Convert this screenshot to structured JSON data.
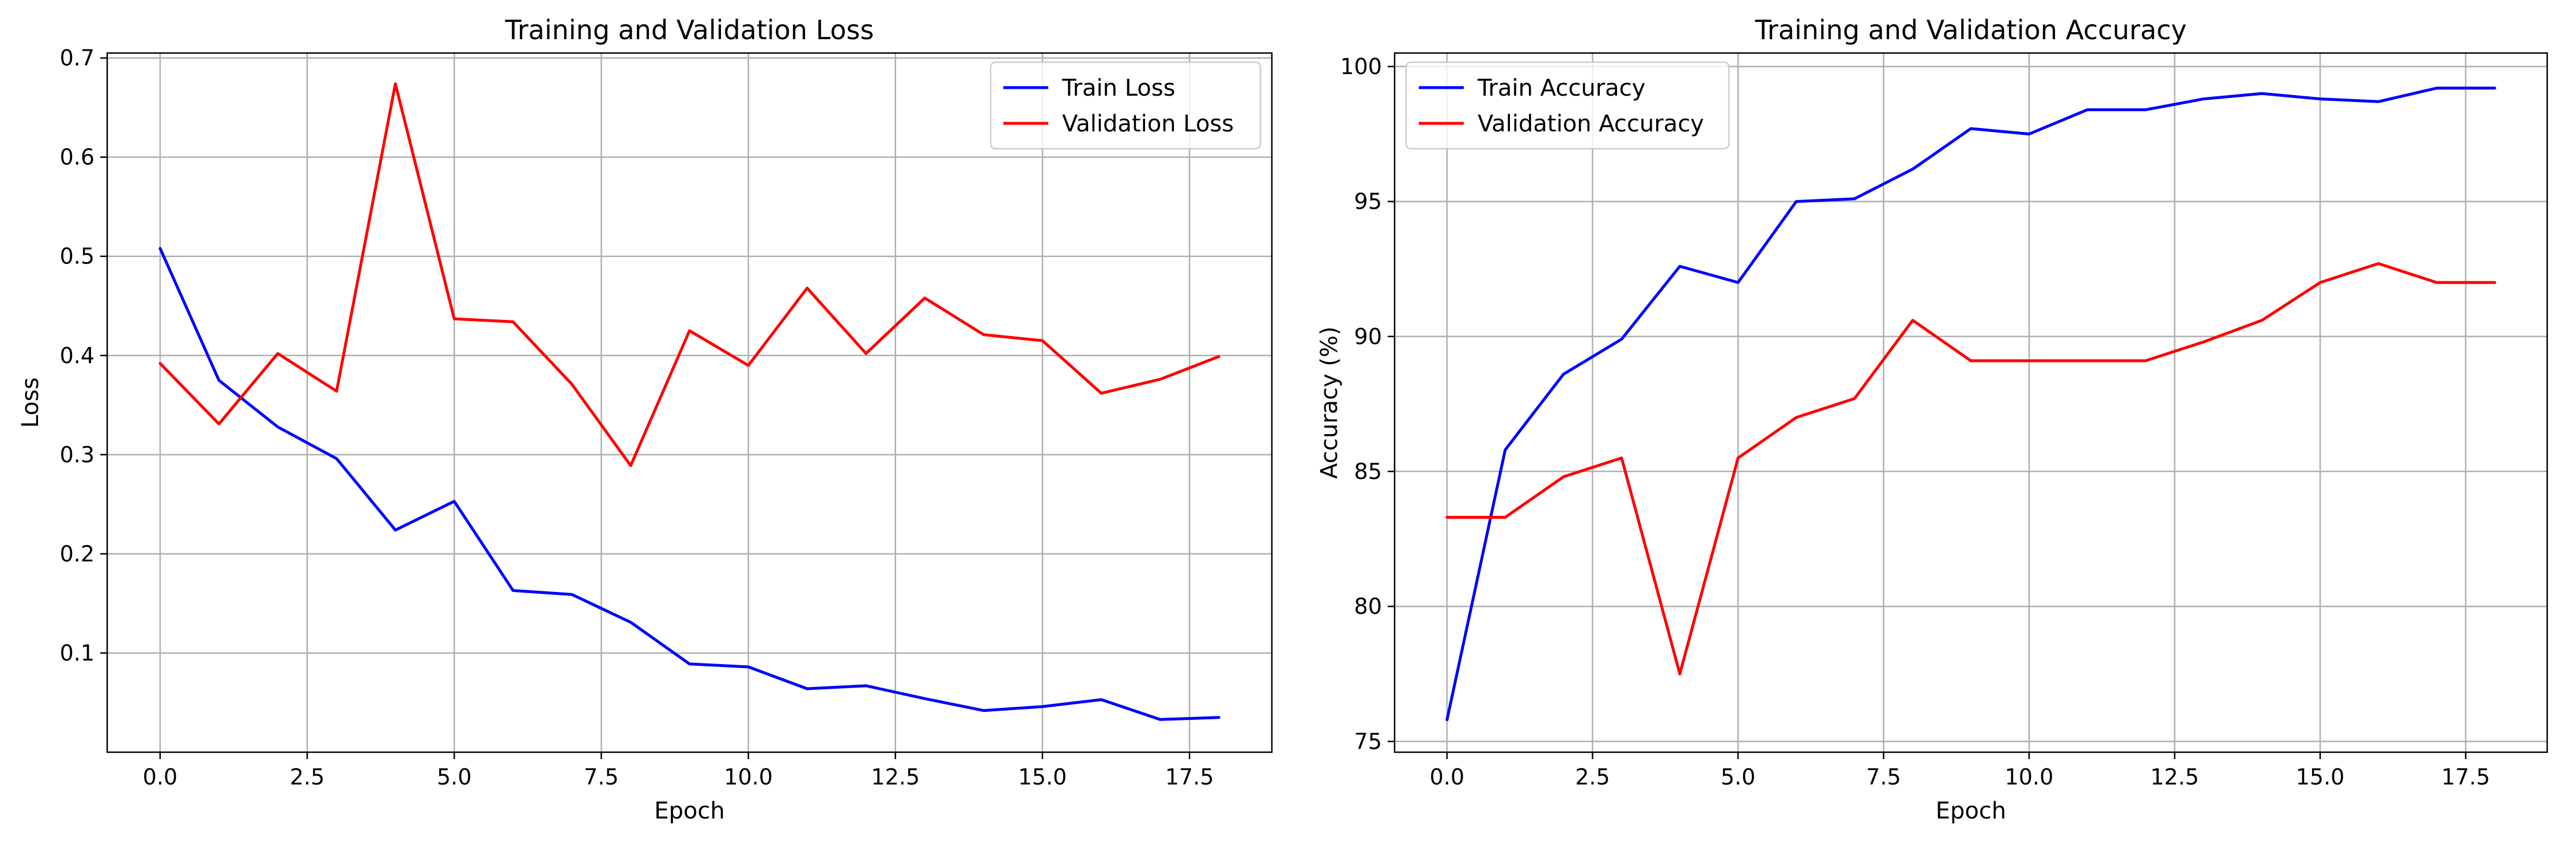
{
  "chart_data": [
    {
      "type": "line",
      "title": "Training and Validation Loss",
      "xlabel": "Epoch",
      "ylabel": "Loss",
      "x": [
        0,
        1,
        2,
        3,
        4,
        5,
        6,
        7,
        8,
        9,
        10,
        11,
        12,
        13,
        14,
        15,
        16,
        17,
        18
      ],
      "xlim": [
        -0.9,
        18.9
      ],
      "ylim": [
        0.0,
        0.705
      ],
      "xticks": [
        0.0,
        2.5,
        5.0,
        7.5,
        10.0,
        12.5,
        15.0,
        17.5
      ],
      "xtick_labels": [
        "0.0",
        "2.5",
        "5.0",
        "7.5",
        "10.0",
        "12.5",
        "15.0",
        "17.5"
      ],
      "yticks": [
        0.1,
        0.2,
        0.3,
        0.4,
        0.5,
        0.6,
        0.7
      ],
      "ytick_labels": [
        "0.1",
        "0.2",
        "0.3",
        "0.4",
        "0.5",
        "0.6",
        "0.7"
      ],
      "grid": true,
      "legend_position": "top-right",
      "series": [
        {
          "name": "Train Loss",
          "color": "#0000ff",
          "values": [
            0.508,
            0.375,
            0.328,
            0.296,
            0.224,
            0.253,
            0.163,
            0.159,
            0.131,
            0.089,
            0.086,
            0.064,
            0.067,
            0.054,
            0.042,
            0.046,
            0.053,
            0.033,
            0.035
          ]
        },
        {
          "name": "Validation Loss",
          "color": "#ff0000",
          "values": [
            0.392,
            0.331,
            0.402,
            0.364,
            0.674,
            0.437,
            0.434,
            0.371,
            0.289,
            0.425,
            0.39,
            0.468,
            0.402,
            0.458,
            0.421,
            0.415,
            0.362,
            0.376,
            0.399
          ]
        }
      ]
    },
    {
      "type": "line",
      "title": "Training and Validation Accuracy",
      "xlabel": "Epoch",
      "ylabel": "Accuracy (%)",
      "x": [
        0,
        1,
        2,
        3,
        4,
        5,
        6,
        7,
        8,
        9,
        10,
        11,
        12,
        13,
        14,
        15,
        16,
        17,
        18
      ],
      "xlim": [
        -0.9,
        18.9
      ],
      "ylim": [
        74.6,
        100.5
      ],
      "xticks": [
        0.0,
        2.5,
        5.0,
        7.5,
        10.0,
        12.5,
        15.0,
        17.5
      ],
      "xtick_labels": [
        "0.0",
        "2.5",
        "5.0",
        "7.5",
        "10.0",
        "12.5",
        "15.0",
        "17.5"
      ],
      "yticks": [
        75,
        80,
        85,
        90,
        95,
        100
      ],
      "ytick_labels": [
        "75",
        "80",
        "85",
        "90",
        "95",
        "100"
      ],
      "grid": true,
      "legend_position": "top-left",
      "series": [
        {
          "name": "Train Accuracy",
          "color": "#0000ff",
          "values": [
            75.8,
            85.8,
            88.6,
            89.9,
            92.6,
            92.0,
            95.0,
            95.1,
            96.2,
            97.7,
            97.5,
            98.4,
            98.4,
            98.8,
            99.0,
            98.8,
            98.7,
            99.2,
            99.2
          ]
        },
        {
          "name": "Validation Accuracy",
          "color": "#ff0000",
          "values": [
            83.3,
            83.3,
            84.8,
            85.5,
            77.5,
            85.5,
            87.0,
            87.7,
            90.6,
            89.1,
            89.1,
            89.1,
            89.1,
            89.8,
            90.6,
            92.0,
            92.7,
            92.0,
            92.0
          ]
        }
      ]
    }
  ]
}
